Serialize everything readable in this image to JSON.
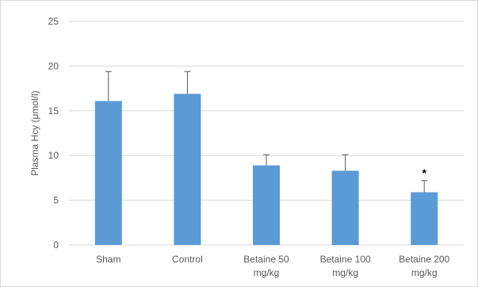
{
  "chart_data": {
    "type": "bar",
    "title": "",
    "xlabel": "",
    "ylabel": "Plasma Hcy (μmol/l)",
    "ylim": [
      0,
      25
    ],
    "yticks": [
      0,
      5,
      10,
      15,
      20,
      25
    ],
    "grid": true,
    "categories": [
      [
        "Sham"
      ],
      [
        "Control"
      ],
      [
        "Betaine 50",
        "mg/kg"
      ],
      [
        "Betaine 100",
        "mg/kg"
      ],
      [
        "Betaine 200",
        "mg/kg"
      ]
    ],
    "values": [
      16.1,
      16.9,
      8.9,
      8.3,
      5.9
    ],
    "error_upper": [
      19.4,
      19.4,
      10.1,
      10.1,
      7.2
    ],
    "annotations": [
      "",
      "",
      "",
      "",
      "*"
    ],
    "colors": {
      "bar": "#5b9bd5",
      "grid": "#d9d9d9",
      "error_bar": "#595959",
      "text": "#595959"
    }
  }
}
